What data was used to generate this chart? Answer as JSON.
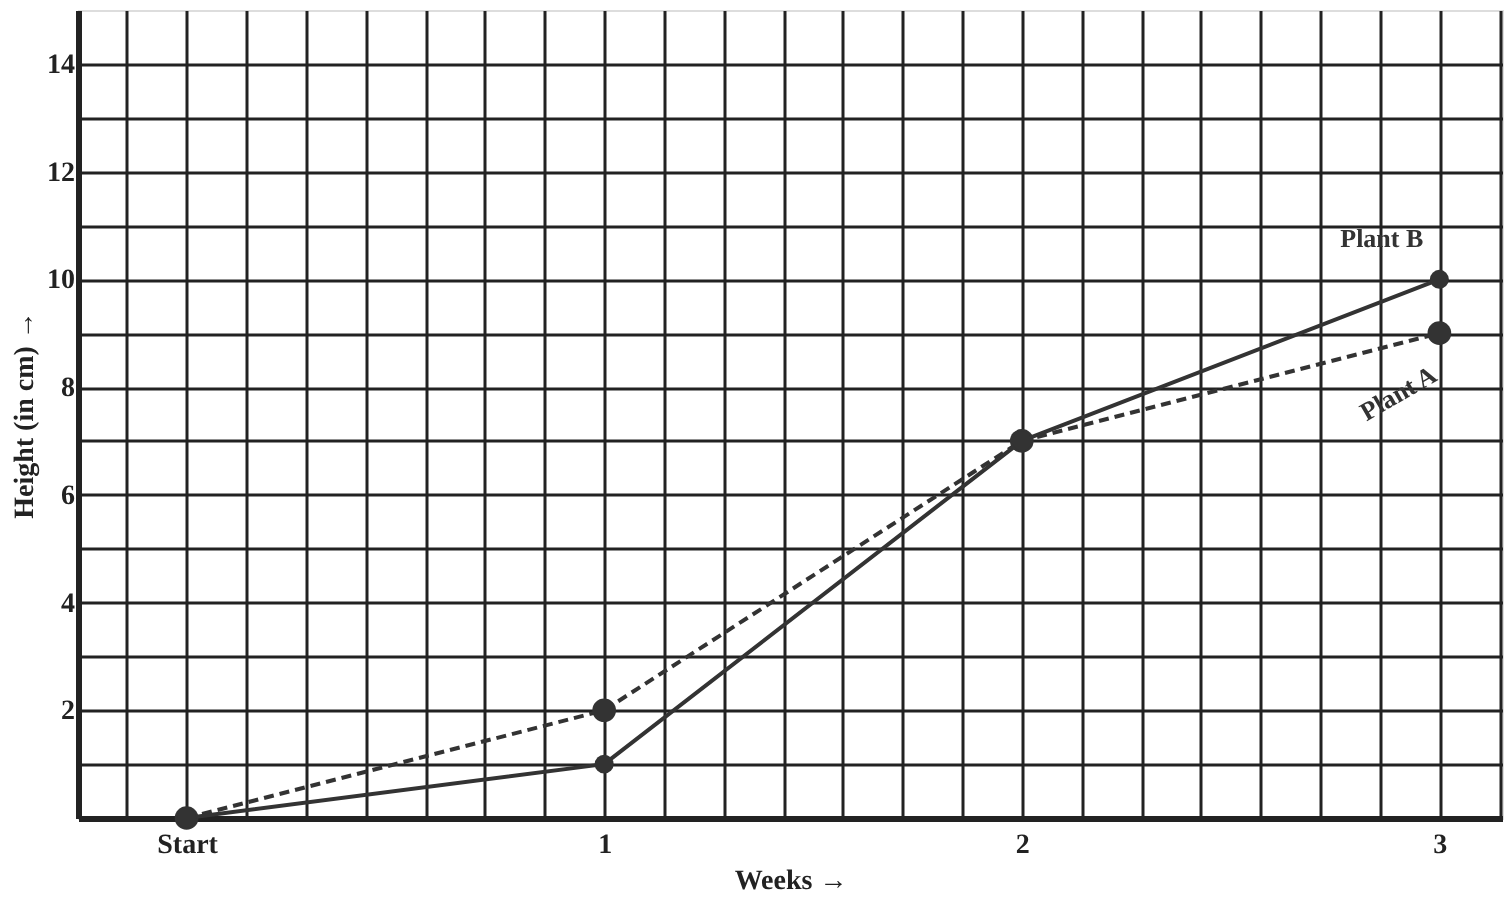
{
  "chart_data": {
    "type": "line",
    "xlabel": "Weeks →",
    "ylabel": "Height (in cm) →",
    "x": [
      0,
      1,
      2,
      3
    ],
    "series": [
      {
        "name": "Plant A",
        "color": "#333333",
        "values": [
          0,
          2,
          7,
          9
        ],
        "line_style": "dashed"
      },
      {
        "name": "Plant B",
        "color": "#333333",
        "values": [
          0,
          1,
          7,
          10
        ],
        "line_style": "solid"
      }
    ],
    "xlim": [
      -0.26,
      3.15
    ],
    "xticks": [
      {
        "value": -0.143,
        "label": null
      },
      {
        "value": 0,
        "label": "Start"
      },
      {
        "value": 0.143,
        "label": null
      },
      {
        "value": 0.286,
        "label": null
      },
      {
        "value": 0.429,
        "label": null
      },
      {
        "value": 0.571,
        "label": null
      },
      {
        "value": 0.714,
        "label": null
      },
      {
        "value": 0.857,
        "label": null
      },
      1,
      {
        "value": 1.143,
        "label": null
      },
      {
        "value": 1.286,
        "label": null
      },
      {
        "value": 1.429,
        "label": null
      },
      {
        "value": 1.571,
        "label": null
      },
      {
        "value": 1.714,
        "label": null
      },
      {
        "value": 1.857,
        "label": null
      },
      2,
      {
        "value": 2.143,
        "label": null
      },
      {
        "value": 2.286,
        "label": null
      },
      {
        "value": 2.429,
        "label": null
      },
      {
        "value": 2.571,
        "label": null
      },
      {
        "value": 2.714,
        "label": null
      },
      {
        "value": 2.857,
        "label": null
      },
      3,
      {
        "value": 3.143,
        "label": null
      }
    ],
    "ylim": [
      0,
      15
    ],
    "yticks": [
      {
        "value": 1,
        "label": null
      },
      2,
      {
        "value": 3,
        "label": null
      },
      4,
      {
        "value": 5,
        "label": null
      },
      6,
      {
        "value": 7,
        "label": null
      },
      8,
      {
        "value": 9,
        "label": null
      },
      10,
      {
        "value": 11,
        "label": null
      },
      12,
      {
        "value": 13,
        "label": null
      },
      14
    ],
    "grid": true,
    "marker": "circle"
  }
}
